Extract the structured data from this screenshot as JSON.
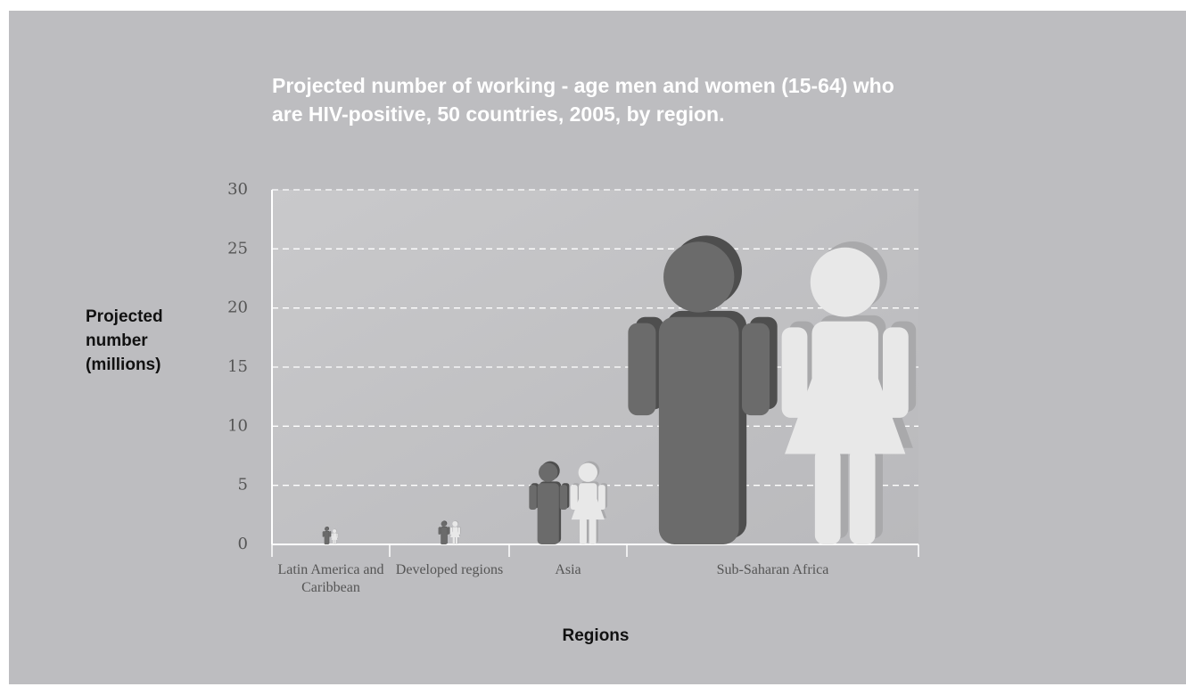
{
  "chart_data": {
    "type": "pictograph",
    "title": "Projected number of working - age men and women (15-64) who are HIV-positive, 50 countries, 2005, by region.",
    "y_label": "Projected number (millions)",
    "x_label": "Regions",
    "categories": [
      "Latin America and Caribbean",
      "Developed regions",
      "Asia",
      "Sub-Saharan Africa"
    ],
    "series": [
      {
        "color": "#6b6b6b",
        "values": [
          1.5,
          2,
          7,
          26
        ]
      },
      {
        "color": "#e8e8e8",
        "values": [
          1.3,
          2,
          7,
          25.5
        ]
      }
    ],
    "ylim": [
      0,
      30
    ],
    "yticks": [
      0,
      5,
      10,
      15,
      20,
      25,
      30
    ],
    "grid": true
  }
}
